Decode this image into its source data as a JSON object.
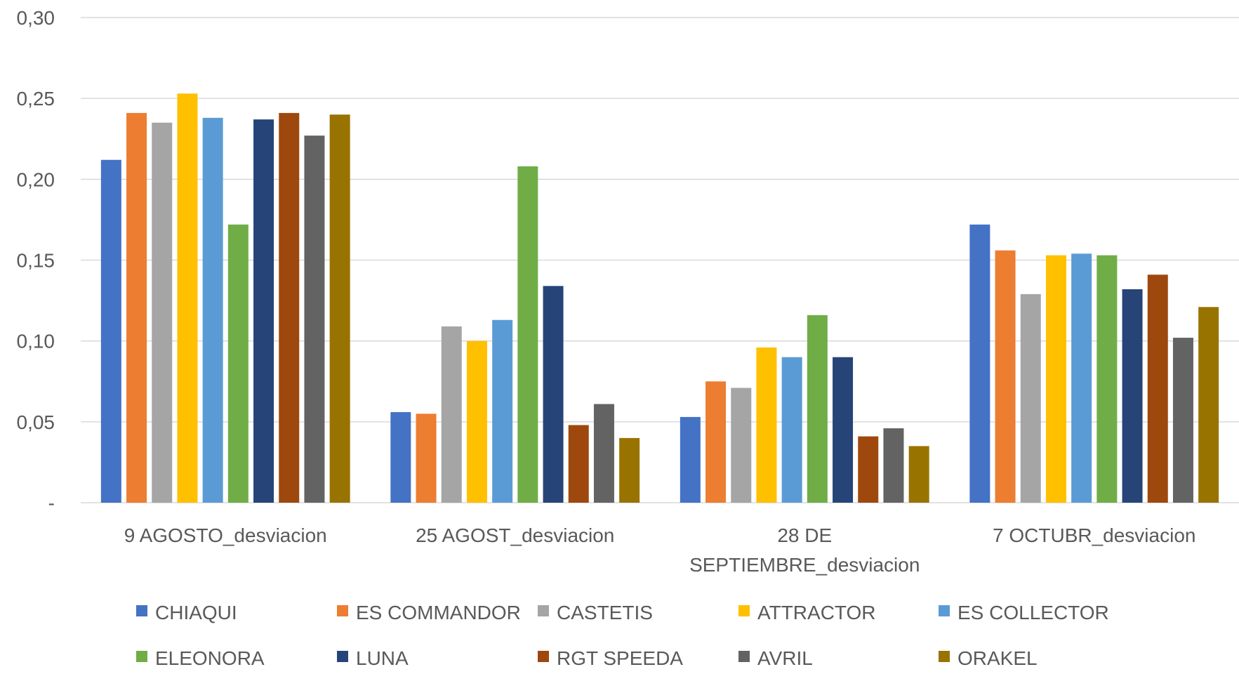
{
  "chart_data": {
    "type": "bar",
    "title": "",
    "xlabel": "",
    "ylabel": "",
    "ylim": [
      0,
      0.3
    ],
    "y_ticks": [
      "-",
      "0,05",
      "0,10",
      "0,15",
      "0,20",
      "0,25",
      "0,30"
    ],
    "grid": true,
    "legend_position": "bottom",
    "categories": [
      [
        "9 AGOSTO_desviacion"
      ],
      [
        "25 AGOST_desviacion"
      ],
      [
        "28 DE",
        "SEPTIEMBRE_desviacion"
      ],
      [
        "7 OCTUBR_desviacion"
      ]
    ],
    "series": [
      {
        "name": "CHIAQUI",
        "color": "#4472C4",
        "values": [
          0.212,
          0.056,
          0.053,
          0.172
        ]
      },
      {
        "name": "ES COMMANDOR",
        "color": "#ED7D31",
        "values": [
          0.241,
          0.055,
          0.075,
          0.156
        ]
      },
      {
        "name": "CASTETIS",
        "color": "#A5A5A5",
        "values": [
          0.235,
          0.109,
          0.071,
          0.129
        ]
      },
      {
        "name": "ATTRACTOR",
        "color": "#FFC000",
        "values": [
          0.253,
          0.1,
          0.096,
          0.153
        ]
      },
      {
        "name": "ES COLLECTOR",
        "color": "#5B9BD5",
        "values": [
          0.238,
          0.113,
          0.09,
          0.154
        ]
      },
      {
        "name": "ELEONORA",
        "color": "#70AD47",
        "values": [
          0.172,
          0.208,
          0.116,
          0.153
        ]
      },
      {
        "name": "LUNA",
        "color": "#264478",
        "values": [
          0.237,
          0.134,
          0.09,
          0.132
        ]
      },
      {
        "name": "RGT SPEEDA",
        "color": "#9E480E",
        "values": [
          0.241,
          0.048,
          0.041,
          0.141
        ]
      },
      {
        "name": "AVRIL",
        "color": "#636363",
        "values": [
          0.227,
          0.061,
          0.046,
          0.102
        ]
      },
      {
        "name": "ORAKEL",
        "color": "#997300",
        "values": [
          0.24,
          0.04,
          0.035,
          0.121
        ]
      }
    ]
  }
}
